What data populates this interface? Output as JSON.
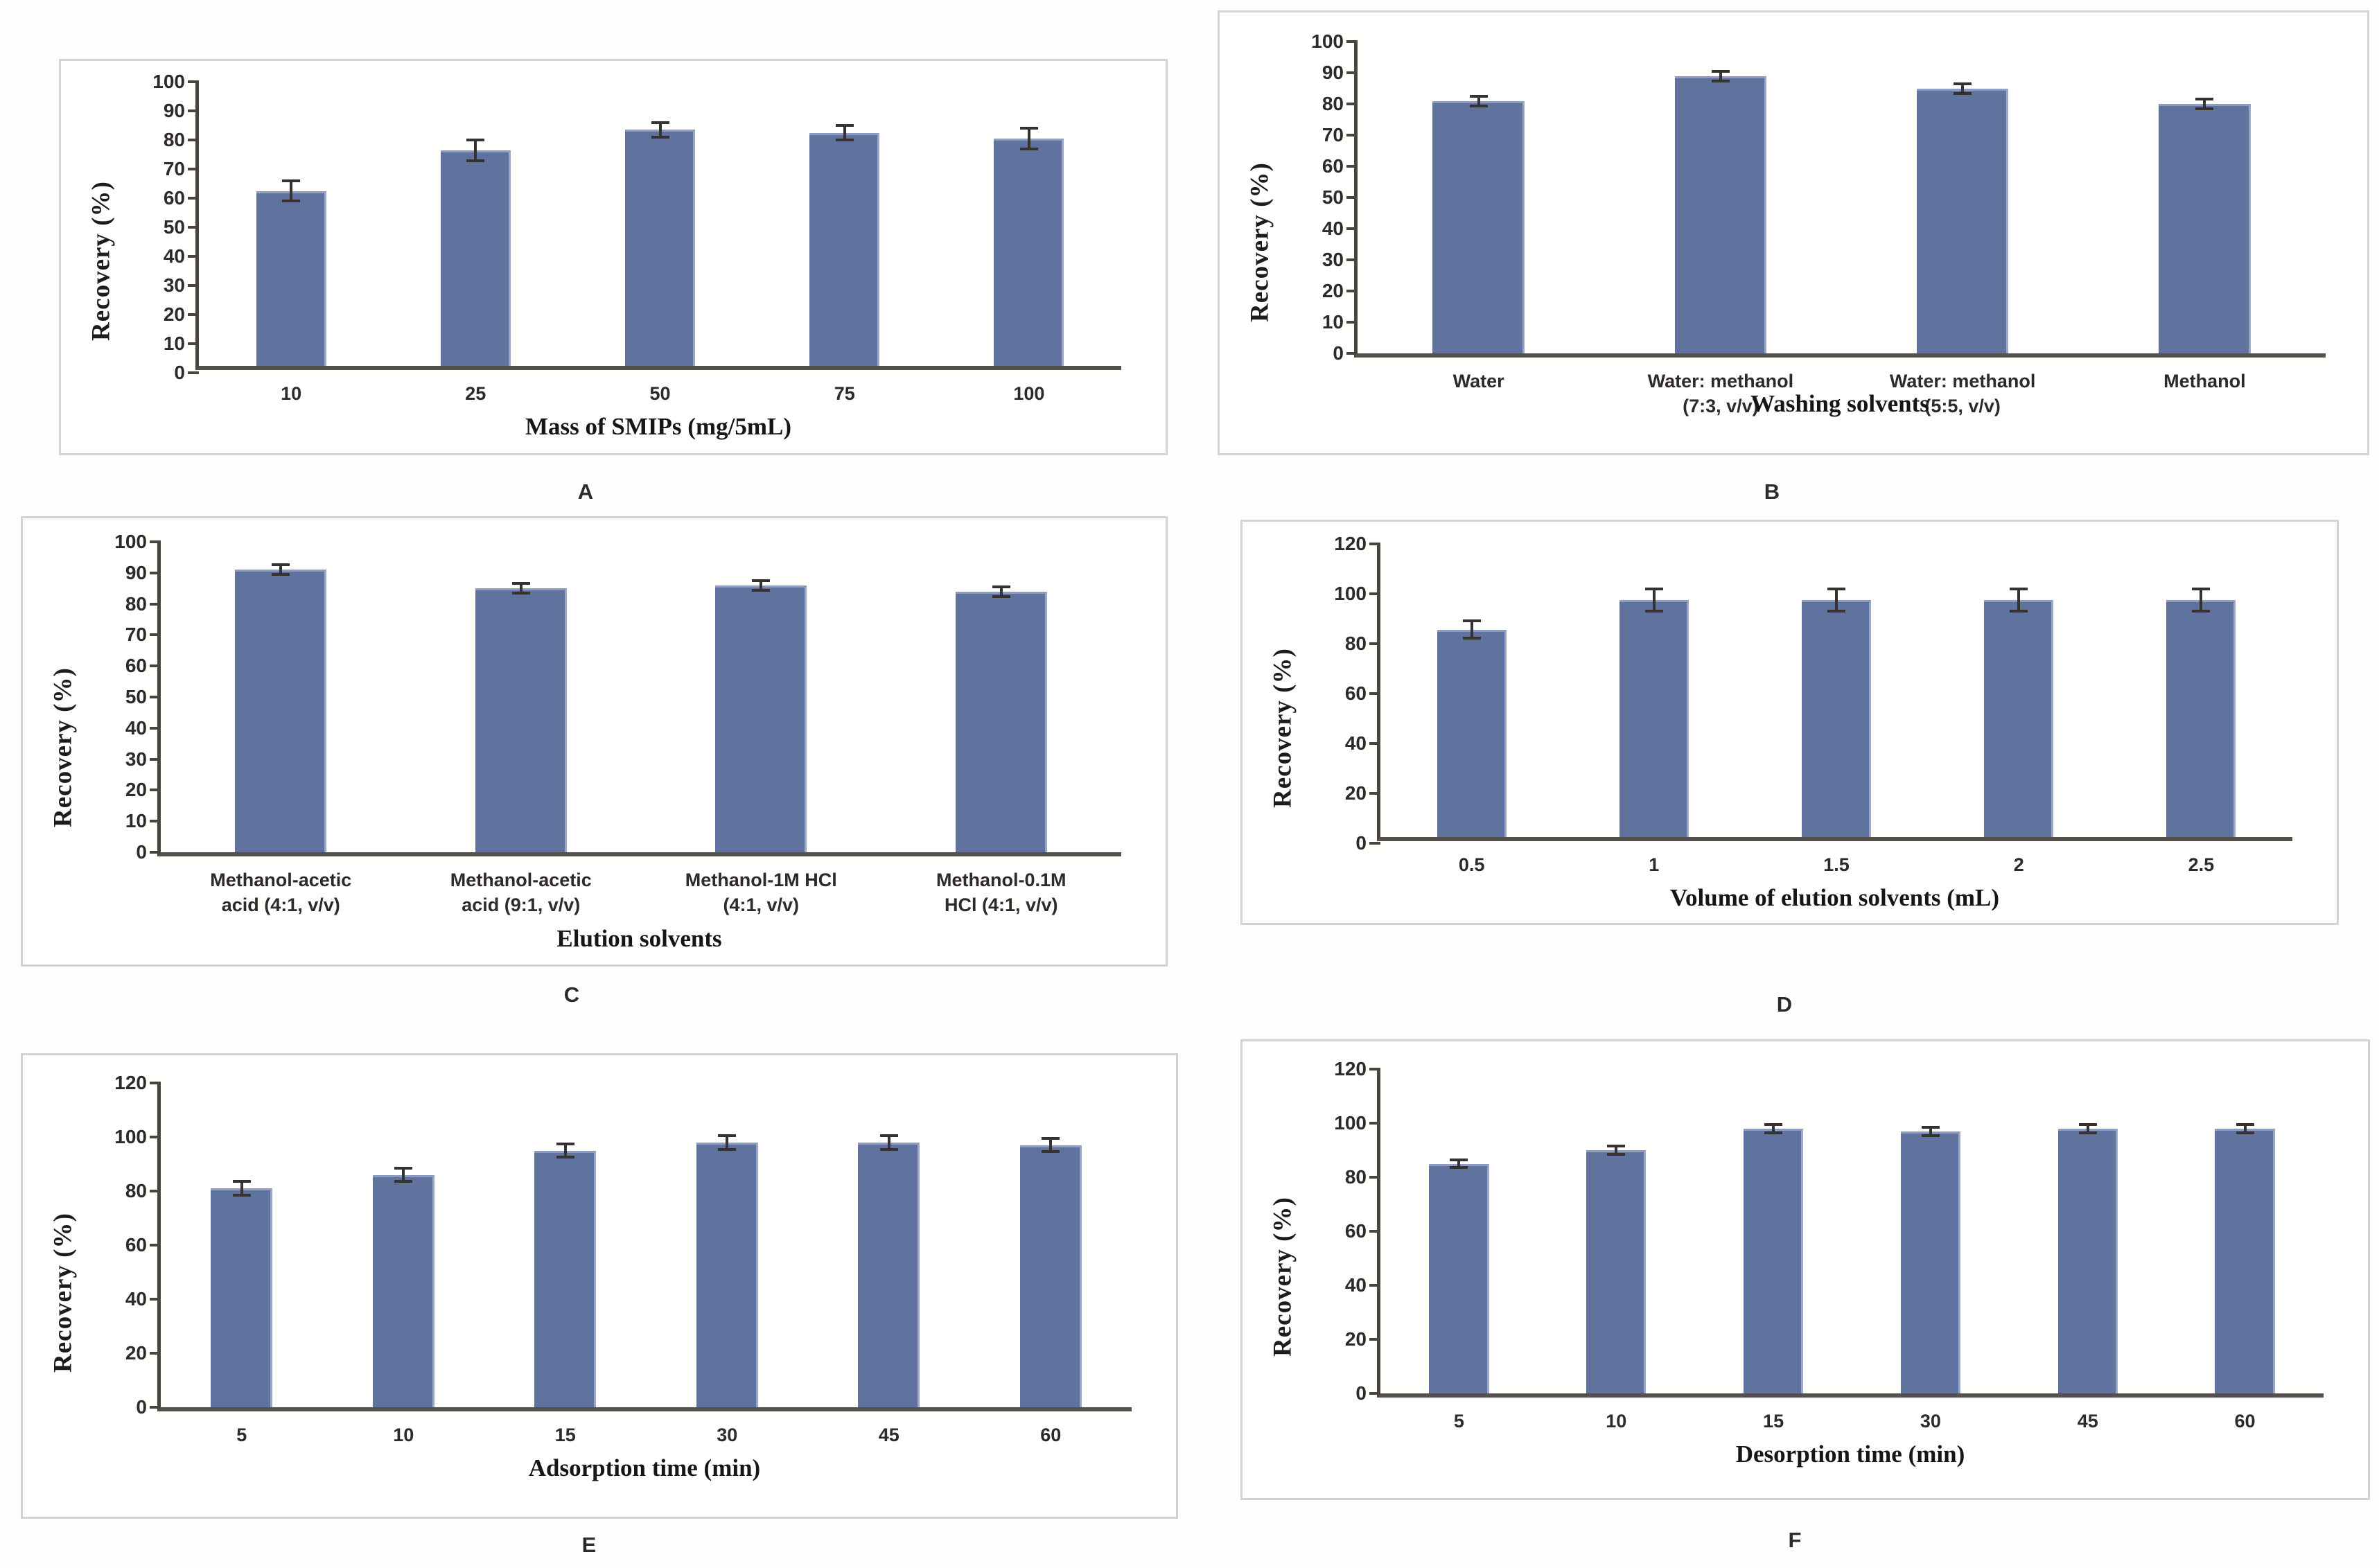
{
  "figure": {
    "description": "Six-panel bar chart figure of recovery percentages",
    "y_axis_label": "Recovery (%)"
  },
  "colors": {
    "bar": "#60739f",
    "bar_edge": "#8d9cc0",
    "error_bar": "#35322f",
    "axis": "#4a443f",
    "panel_border": "#d8d1d1",
    "text": "#2e2a28"
  },
  "chart_data": [
    {
      "type": "bar",
      "panel_label": "A",
      "title": "",
      "categories": [
        "10",
        "25",
        "50",
        "75",
        "100"
      ],
      "values": [
        60,
        74,
        81,
        80,
        78
      ],
      "errors": [
        4,
        4,
        3,
        3,
        4
      ],
      "xlabel": "Mass of SMIPs (mg/5mL)",
      "ylabel": "Recovery (%)",
      "ylim": [
        0,
        100
      ],
      "ytick_step": 10,
      "grid": false,
      "legend": false
    },
    {
      "type": "bar",
      "panel_label": "B",
      "title": "",
      "categories": [
        "Water",
        "Water: methanol\n(7:3, v/v)",
        "Water: methanol\n(5:5, v/v)",
        "Methanol"
      ],
      "values": [
        81,
        89,
        85,
        80
      ],
      "errors": [
        2,
        2,
        2,
        2
      ],
      "xlabel": "Washing solvents",
      "ylabel": "Recovery (%)",
      "ylim": [
        0,
        100
      ],
      "ytick_step": 10,
      "grid": false,
      "legend": false
    },
    {
      "type": "bar",
      "panel_label": "C",
      "title": "",
      "categories": [
        "Methanol-acetic\nacid (4:1, v/v)",
        "Methanol-acetic\nacid (9:1, v/v)",
        "Methanol-1M HCl\n(4:1, v/v)",
        "Methanol-0.1M\nHCl (4:1, v/v)"
      ],
      "values": [
        91,
        85,
        86,
        84
      ],
      "errors": [
        2,
        2,
        2,
        2
      ],
      "xlabel": "Elution solvents",
      "ylabel": "Recovery (%)",
      "ylim": [
        0,
        100
      ],
      "ytick_step": 10,
      "grid": false,
      "legend": false
    },
    {
      "type": "bar",
      "panel_label": "D",
      "title": "",
      "categories": [
        "0.5",
        "1",
        "1.5",
        "2",
        "2.5"
      ],
      "values": [
        83,
        95,
        95,
        95,
        95
      ],
      "errors": [
        4,
        5,
        5,
        5,
        5
      ],
      "xlabel": "Volume of elution solvents (mL)",
      "ylabel": "Recovery (%)",
      "ylim": [
        0,
        120
      ],
      "ytick_step": 20,
      "grid": false,
      "legend": false
    },
    {
      "type": "bar",
      "panel_label": "E",
      "title": "",
      "categories": [
        "5",
        "10",
        "15",
        "30",
        "45",
        "60"
      ],
      "values": [
        81,
        86,
        95,
        98,
        98,
        97
      ],
      "errors": [
        3,
        3,
        3,
        3,
        3,
        3
      ],
      "xlabel": "Adsorption time (min)",
      "ylabel": "Recovery (%)",
      "ylim": [
        0,
        120
      ],
      "ytick_step": 20,
      "grid": false,
      "legend": false
    },
    {
      "type": "bar",
      "panel_label": "F",
      "title": "",
      "categories": [
        "5",
        "10",
        "15",
        "30",
        "45",
        "60"
      ],
      "values": [
        85,
        90,
        98,
        97,
        98,
        98
      ],
      "errors": [
        2,
        2,
        2,
        2,
        2,
        2
      ],
      "xlabel": "Desorption time (min)",
      "ylabel": "Recovery (%)",
      "ylim": [
        0,
        120
      ],
      "ytick_step": 20,
      "grid": false,
      "legend": false
    }
  ]
}
